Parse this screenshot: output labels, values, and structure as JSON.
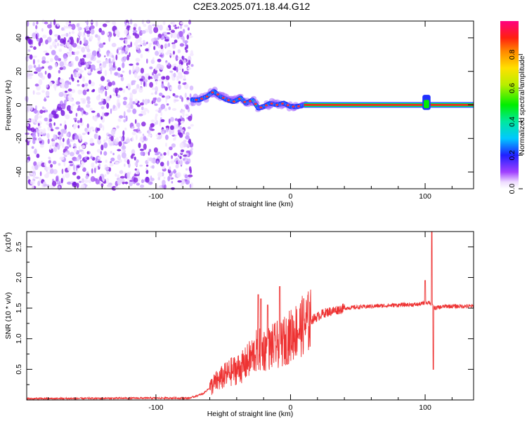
{
  "title": "C2E3.2025.071.18.44.G12",
  "chart_data": [
    {
      "type": "heatmap",
      "title": "C2E3.2025.071.18.44.G12",
      "xlabel": "Height of straight line (km)",
      "ylabel": "Frequency (Hz)",
      "xlim": [
        -196,
        136
      ],
      "ylim": [
        -50,
        50
      ],
      "xticks": [
        -100,
        0,
        100
      ],
      "yticks": [
        -40,
        -20,
        0,
        20,
        40
      ],
      "colorbar": {
        "label": "Normalized spectral amplitude",
        "range": [
          0,
          1
        ],
        "ticks": [
          "0.0",
          "0.2",
          "0.4",
          "0.6",
          "0.8"
        ]
      },
      "regions": [
        {
          "description": "noise",
          "x_from": -196,
          "x_to": -73,
          "freq_from": -50,
          "freq_to": 50
        },
        {
          "description": "signal",
          "x_from": -73,
          "x_to": 136
        }
      ],
      "signal_track": [
        {
          "x": -73,
          "freq": 3
        },
        {
          "x": -68,
          "freq": 3
        },
        {
          "x": -62,
          "freq": 5
        },
        {
          "x": -57,
          "freq": 8
        },
        {
          "x": -52,
          "freq": 5
        },
        {
          "x": -47,
          "freq": 3
        },
        {
          "x": -42,
          "freq": 2
        },
        {
          "x": -37,
          "freq": 4
        },
        {
          "x": -33,
          "freq": 1
        },
        {
          "x": -28,
          "freq": 3
        },
        {
          "x": -24,
          "freq": -2
        },
        {
          "x": -20,
          "freq": -1
        },
        {
          "x": -15,
          "freq": 1
        },
        {
          "x": -10,
          "freq": 0
        },
        {
          "x": -5,
          "freq": 1
        },
        {
          "x": 0,
          "freq": -1
        },
        {
          "x": 5,
          "freq": -1
        },
        {
          "x": 10,
          "freq": 0
        },
        {
          "x": 20,
          "freq": 0
        },
        {
          "x": 40,
          "freq": 0
        },
        {
          "x": 60,
          "freq": 0
        },
        {
          "x": 80,
          "freq": 0
        },
        {
          "x": 100,
          "freq": 0
        },
        {
          "x": 120,
          "freq": 0
        },
        {
          "x": 136,
          "freq": 0
        }
      ]
    },
    {
      "type": "line",
      "xlabel": "Height of straight line (km)",
      "ylabel": "SNR (10 * v/v)",
      "multiplier": "(x10^4)",
      "multiplier_base": "(x10",
      "multiplier_exp": "4",
      "multiplier_end": ")",
      "xlim": [
        -196,
        136
      ],
      "ylim": [
        0,
        2.75
      ],
      "xticks": [
        -100,
        0,
        100
      ],
      "yticks": [
        0.5,
        1.0,
        1.5,
        2.0,
        2.5
      ],
      "color": "#ee3333",
      "envelope_x": [
        -196,
        -100,
        -75,
        -65,
        -55,
        -45,
        -35,
        -25,
        -15,
        -5,
        5,
        15,
        25,
        40,
        60,
        80,
        95,
        103,
        107,
        115,
        136
      ],
      "envelope_y": [
        0.02,
        0.03,
        0.03,
        0.1,
        0.3,
        0.45,
        0.55,
        0.8,
        0.85,
        0.95,
        1.15,
        1.3,
        1.42,
        1.5,
        1.53,
        1.55,
        1.56,
        1.6,
        1.5,
        1.53,
        1.53
      ],
      "spikes": [
        {
          "x": -24,
          "y": 1.72
        },
        {
          "x": -22,
          "y": 1.65
        },
        {
          "x": -17,
          "y": 1.55
        },
        {
          "x": -8,
          "y": 1.85
        },
        {
          "x": 100,
          "y": 1.95
        },
        {
          "x": 105,
          "y": 2.75
        },
        {
          "x": 106,
          "y": 0.5
        }
      ]
    }
  ]
}
